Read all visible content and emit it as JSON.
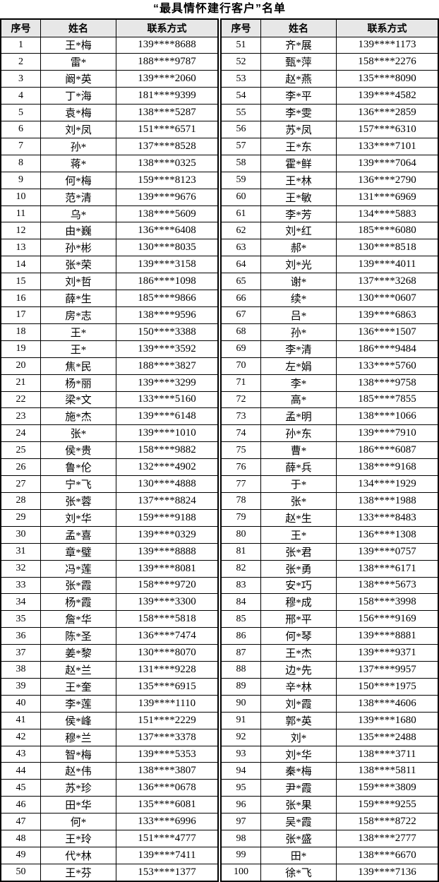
{
  "title": "“最具情怀建行客户”名单",
  "columns": [
    "序号",
    "姓名",
    "联系方式"
  ],
  "colors": {
    "header_bg": "#e7e7e7",
    "border": "#000000",
    "background": "#ffffff",
    "text": "#000000"
  },
  "tables": {
    "left": {
      "rows": [
        {
          "no": "1",
          "name": "王*梅",
          "phone": "139****8688"
        },
        {
          "no": "2",
          "name": "雷*",
          "phone": "188****9787"
        },
        {
          "no": "3",
          "name": "阚*英",
          "phone": "139****2060"
        },
        {
          "no": "4",
          "name": "丁*海",
          "phone": "181****9399"
        },
        {
          "no": "5",
          "name": "袁*梅",
          "phone": "138****5287"
        },
        {
          "no": "6",
          "name": "刘*凤",
          "phone": "151****6571"
        },
        {
          "no": "7",
          "name": "孙*",
          "phone": "137****8528"
        },
        {
          "no": "8",
          "name": "蒋*",
          "phone": "138****0325"
        },
        {
          "no": "9",
          "name": "何*梅",
          "phone": "159****8123"
        },
        {
          "no": "10",
          "name": "范*清",
          "phone": "139****9676"
        },
        {
          "no": "11",
          "name": "乌*",
          "phone": "138****5609"
        },
        {
          "no": "12",
          "name": "由*巍",
          "phone": "136****6408"
        },
        {
          "no": "13",
          "name": "孙*彬",
          "phone": "130****8035"
        },
        {
          "no": "14",
          "name": "张*荣",
          "phone": "139****3158"
        },
        {
          "no": "15",
          "name": "刘*哲",
          "phone": "186****1098"
        },
        {
          "no": "16",
          "name": "薛*生",
          "phone": "185****9866"
        },
        {
          "no": "17",
          "name": "房*志",
          "phone": "138****9596"
        },
        {
          "no": "18",
          "name": "王*",
          "phone": "150****3388"
        },
        {
          "no": "19",
          "name": "王*",
          "phone": "139****3592"
        },
        {
          "no": "20",
          "name": "焦*民",
          "phone": "188****3827"
        },
        {
          "no": "21",
          "name": "杨*丽",
          "phone": "139****3299"
        },
        {
          "no": "22",
          "name": "梁*文",
          "phone": "133****5160"
        },
        {
          "no": "23",
          "name": "施*杰",
          "phone": "139****6148"
        },
        {
          "no": "24",
          "name": "张*",
          "phone": "139****1010"
        },
        {
          "no": "25",
          "name": "侯*贵",
          "phone": "158****9882"
        },
        {
          "no": "26",
          "name": "鲁*伦",
          "phone": "132****4902"
        },
        {
          "no": "27",
          "name": "宁*飞",
          "phone": "130****4888"
        },
        {
          "no": "28",
          "name": "张*蓉",
          "phone": "137****8824"
        },
        {
          "no": "29",
          "name": "刘*华",
          "phone": "159****9188"
        },
        {
          "no": "30",
          "name": "孟*喜",
          "phone": "139****0329"
        },
        {
          "no": "31",
          "name": "章*璧",
          "phone": "139****8888"
        },
        {
          "no": "32",
          "name": "冯*莲",
          "phone": "139****8081"
        },
        {
          "no": "33",
          "name": "张*霞",
          "phone": "158****9720"
        },
        {
          "no": "34",
          "name": "杨*霞",
          "phone": "139****3300"
        },
        {
          "no": "35",
          "name": "詹*华",
          "phone": "158****5818"
        },
        {
          "no": "36",
          "name": "陈*圣",
          "phone": "136****7474"
        },
        {
          "no": "37",
          "name": "姜*黎",
          "phone": "130****8070"
        },
        {
          "no": "38",
          "name": "赵*兰",
          "phone": "131****9228"
        },
        {
          "no": "39",
          "name": "王*奎",
          "phone": "135****6915"
        },
        {
          "no": "40",
          "name": "李*莲",
          "phone": "139****1110"
        },
        {
          "no": "41",
          "name": "侯*峰",
          "phone": "151****2229"
        },
        {
          "no": "42",
          "name": "穆*兰",
          "phone": "137****3378"
        },
        {
          "no": "43",
          "name": "智*梅",
          "phone": "139****5353"
        },
        {
          "no": "44",
          "name": "赵*伟",
          "phone": "138****3807"
        },
        {
          "no": "45",
          "name": "苏*珍",
          "phone": "136****0678"
        },
        {
          "no": "46",
          "name": "田*华",
          "phone": "135****6081"
        },
        {
          "no": "47",
          "name": "何*",
          "phone": "133****6996"
        },
        {
          "no": "48",
          "name": "王*玲",
          "phone": "151****4777"
        },
        {
          "no": "49",
          "name": "代*林",
          "phone": "139****7411"
        },
        {
          "no": "50",
          "name": "王*芬",
          "phone": "153****1377"
        }
      ]
    },
    "right": {
      "rows": [
        {
          "no": "51",
          "name": "齐*展",
          "phone": "139****1173"
        },
        {
          "no": "52",
          "name": "甄*萍",
          "phone": "158****2276"
        },
        {
          "no": "53",
          "name": "赵*燕",
          "phone": "135****8090"
        },
        {
          "no": "54",
          "name": "李*平",
          "phone": "139****4582"
        },
        {
          "no": "55",
          "name": "李*雯",
          "phone": "136****2859"
        },
        {
          "no": "56",
          "name": "苏*凤",
          "phone": "157****6310"
        },
        {
          "no": "57",
          "name": "王*东",
          "phone": "133****7101"
        },
        {
          "no": "58",
          "name": "霍*鲜",
          "phone": "139****7064"
        },
        {
          "no": "59",
          "name": "王*林",
          "phone": "136****2790"
        },
        {
          "no": "60",
          "name": "王*敏",
          "phone": "131****6969"
        },
        {
          "no": "61",
          "name": "李*芳",
          "phone": "134****5883"
        },
        {
          "no": "62",
          "name": "刘*红",
          "phone": "185****6080"
        },
        {
          "no": "63",
          "name": "郝*",
          "phone": "130****8518"
        },
        {
          "no": "64",
          "name": "刘*光",
          "phone": "139****4011"
        },
        {
          "no": "65",
          "name": "谢*",
          "phone": "137****3268"
        },
        {
          "no": "66",
          "name": "续*",
          "phone": "130****0607"
        },
        {
          "no": "67",
          "name": "吕*",
          "phone": "139****6863"
        },
        {
          "no": "68",
          "name": "孙*",
          "phone": "136****1507"
        },
        {
          "no": "69",
          "name": "李*清",
          "phone": "186****9484"
        },
        {
          "no": "70",
          "name": "左*娟",
          "phone": "133****5760"
        },
        {
          "no": "71",
          "name": "李*",
          "phone": "138****9758"
        },
        {
          "no": "72",
          "name": "高*",
          "phone": "185****7855"
        },
        {
          "no": "73",
          "name": "孟*明",
          "phone": "138****1066"
        },
        {
          "no": "74",
          "name": "孙*东",
          "phone": "139****7910"
        },
        {
          "no": "75",
          "name": "曹*",
          "phone": "186****6087"
        },
        {
          "no": "76",
          "name": "薛*兵",
          "phone": "138****9168"
        },
        {
          "no": "77",
          "name": "于*",
          "phone": "134****1929"
        },
        {
          "no": "78",
          "name": "张*",
          "phone": "138****1988"
        },
        {
          "no": "79",
          "name": "赵*生",
          "phone": "133****8483"
        },
        {
          "no": "80",
          "name": "王*",
          "phone": "136****1308"
        },
        {
          "no": "81",
          "name": "张*君",
          "phone": "139****0757"
        },
        {
          "no": "82",
          "name": "张*勇",
          "phone": "138****6171"
        },
        {
          "no": "83",
          "name": "安*巧",
          "phone": "138****5673"
        },
        {
          "no": "84",
          "name": "穆*成",
          "phone": "158****3998"
        },
        {
          "no": "85",
          "name": "邢*平",
          "phone": "156****9169"
        },
        {
          "no": "86",
          "name": "何*琴",
          "phone": "139****8881"
        },
        {
          "no": "87",
          "name": "王*杰",
          "phone": "139****9371"
        },
        {
          "no": "88",
          "name": "边*先",
          "phone": "137****9957"
        },
        {
          "no": "89",
          "name": "辛*林",
          "phone": "150****1975"
        },
        {
          "no": "90",
          "name": "刘*霞",
          "phone": "138****4606"
        },
        {
          "no": "91",
          "name": "郭*英",
          "phone": "139****1680"
        },
        {
          "no": "92",
          "name": "刘*",
          "phone": "135****2488"
        },
        {
          "no": "93",
          "name": "刘*华",
          "phone": "138****3711"
        },
        {
          "no": "94",
          "name": "秦*梅",
          "phone": "138****5811"
        },
        {
          "no": "95",
          "name": "尹*霞",
          "phone": "159****3809"
        },
        {
          "no": "96",
          "name": "张*果",
          "phone": "159****9255"
        },
        {
          "no": "97",
          "name": "吴*霞",
          "phone": "158****8722"
        },
        {
          "no": "98",
          "name": "张*盛",
          "phone": "138****2777"
        },
        {
          "no": "99",
          "name": "田*",
          "phone": "138****6670"
        },
        {
          "no": "100",
          "name": "徐*飞",
          "phone": "139****7136"
        }
      ]
    }
  }
}
